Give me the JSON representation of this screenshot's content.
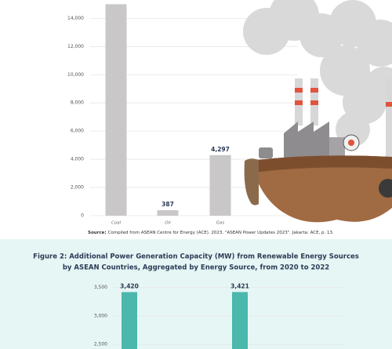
{
  "chart_data": [
    {
      "type": "bar",
      "categories": [
        "Coal",
        "Oil",
        "Gas"
      ],
      "values": [
        15000,
        387,
        4297
      ],
      "value_labels": [
        null,
        "387",
        "4,297"
      ],
      "color": "#c9c7c8",
      "ylim": [
        0,
        15300
      ],
      "yticks": [
        0,
        {
          "value": 2000,
          "label": "2,000"
        },
        {
          "value": 4000,
          "label": "4,000"
        },
        {
          "value": 6000,
          "label": "6,000"
        },
        {
          "value": 8000,
          "label": "8,000"
        },
        {
          "value": 10000,
          "label": "10,000"
        },
        {
          "value": 12000,
          "label": "12,000"
        },
        {
          "value": 14000,
          "label": "14,000"
        }
      ],
      "grid": true,
      "note": {
        "label": "Source:",
        "text": "Compiled from ASEAN Centre for Energy (ACE). 2023. \"ASEAN Power Updates 2023\". Jakarta: ACE, p. 13."
      }
    },
    {
      "type": "bar",
      "title": [
        "Figure 2: Additional Power Generation Capacity (MW) from Renewable Energy Sources",
        "by ASEAN Countries, Aggregated by Energy Source, from 2020 to 2022"
      ],
      "categories": [
        null,
        null
      ],
      "values": [
        3420,
        3421
      ],
      "value_labels": [
        "3,420",
        "3,421"
      ],
      "color": "#4bb8ad",
      "ylim": [
        2420,
        3550
      ],
      "yticks": [
        {
          "value": 2500,
          "label": "2,500"
        },
        {
          "value": 3000,
          "label": "3,000"
        },
        {
          "value": 3500,
          "label": "3,500"
        }
      ],
      "grid": true
    }
  ]
}
